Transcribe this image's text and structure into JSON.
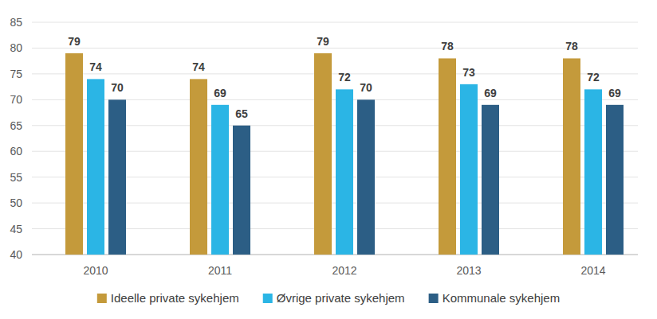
{
  "chart_data": {
    "type": "bar",
    "categories": [
      "2010",
      "2011",
      "2012",
      "2013",
      "2014"
    ],
    "series": [
      {
        "name": "Ideelle private sykehjem",
        "color": "#C49A3B",
        "values": [
          79,
          74,
          79,
          78,
          78
        ]
      },
      {
        "name": "Øvrige private sykehjem",
        "color": "#2BB5E5",
        "values": [
          74,
          69,
          72,
          73,
          72
        ]
      },
      {
        "name": "Kommunale sykehjem",
        "color": "#2C5E85",
        "values": [
          70,
          65,
          70,
          69,
          69
        ]
      }
    ],
    "ylim": [
      40,
      85
    ],
    "yticks": [
      40,
      45,
      50,
      55,
      60,
      65,
      70,
      75,
      80,
      85
    ],
    "grid": true,
    "data_labels": true,
    "legend": "bottom"
  }
}
